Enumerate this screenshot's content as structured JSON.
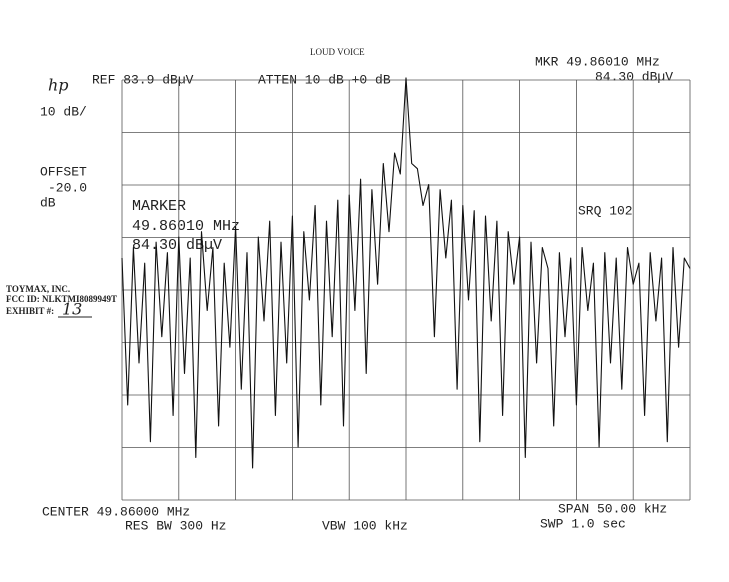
{
  "chart_data": {
    "type": "line",
    "title": "LOUD VOICE",
    "logo": "hp",
    "ref_level": "REF 83.9 dBµV",
    "attenuation": "ATTEN 10 dB +0 dB",
    "marker_freq": "MKR 49.86010 MHz",
    "marker_level": "84.30 dBµV",
    "scale": "10 dB/",
    "offset_label": "OFFSET",
    "offset_value": "-20.0",
    "offset_unit": "dB",
    "marker_title": "MARKER",
    "marker_box_freq": "49.86010 MHz",
    "marker_box_level": "84.30 dBµV",
    "srq": "SRQ 102",
    "center": "CENTER 49.86000 MHz",
    "res_bw": "RES BW 300 Hz",
    "vbw": "VBW 100 kHz",
    "span": "SPAN 50.00 kHz",
    "sweep": "SWP 1.0 sec",
    "xlim": [
      49.835,
      49.885
    ],
    "ylim": [
      3.9,
      83.9
    ],
    "xticks": [
      49.835,
      49.84,
      49.845,
      49.85,
      49.855,
      49.86,
      49.865,
      49.87,
      49.875,
      49.88,
      49.885
    ],
    "yticks": [
      3.9,
      13.9,
      23.9,
      33.9,
      43.9,
      53.9,
      63.9,
      73.9,
      83.9
    ],
    "grid": true,
    "x": [
      49.835,
      49.8355,
      49.836,
      49.8365,
      49.837,
      49.8375,
      49.838,
      49.8385,
      49.839,
      49.8395,
      49.84,
      49.8405,
      49.841,
      49.8415,
      49.842,
      49.8425,
      49.843,
      49.8435,
      49.844,
      49.8445,
      49.845,
      49.8455,
      49.846,
      49.8465,
      49.847,
      49.8475,
      49.848,
      49.8485,
      49.849,
      49.8495,
      49.85,
      49.8505,
      49.851,
      49.8515,
      49.852,
      49.8525,
      49.853,
      49.8535,
      49.854,
      49.8545,
      49.855,
      49.8555,
      49.856,
      49.8565,
      49.857,
      49.8575,
      49.858,
      49.8585,
      49.859,
      49.8595,
      49.86,
      49.8605,
      49.861,
      49.8615,
      49.862,
      49.8625,
      49.863,
      49.8635,
      49.864,
      49.8645,
      49.865,
      49.8655,
      49.866,
      49.8665,
      49.867,
      49.8675,
      49.868,
      49.8685,
      49.869,
      49.8695,
      49.87,
      49.8705,
      49.871,
      49.8715,
      49.872,
      49.8725,
      49.873,
      49.8735,
      49.874,
      49.8745,
      49.875,
      49.8755,
      49.876,
      49.8765,
      49.877,
      49.8775,
      49.878,
      49.8785,
      49.879,
      49.8795,
      49.88,
      49.8805,
      49.881,
      49.8815,
      49.882,
      49.8825,
      49.883,
      49.8835,
      49.884,
      49.8845,
      49.885
    ],
    "series": [
      {
        "color": "#111111",
        "values": [
          50,
          22,
          52,
          30,
          49,
          15,
          53,
          35,
          51,
          20,
          54,
          28,
          50,
          12,
          55,
          40,
          52,
          18,
          49,
          33,
          56,
          25,
          51,
          10,
          54,
          38,
          57,
          20,
          53,
          30,
          58,
          14,
          55,
          42,
          60,
          22,
          57,
          35,
          61,
          18,
          62,
          40,
          65,
          28,
          63,
          45,
          68,
          55,
          70,
          66,
          84.3,
          68,
          67,
          60,
          64,
          35,
          63,
          50,
          61,
          25,
          60,
          42,
          59,
          15,
          58,
          38,
          57,
          20,
          55,
          45,
          54,
          12,
          53,
          30,
          52,
          48,
          18,
          51,
          35,
          50,
          22,
          52,
          40,
          49,
          14,
          51,
          30,
          50,
          25,
          52,
          45,
          49,
          20,
          51,
          38,
          50,
          15,
          52,
          33,
          50,
          48
        ]
      }
    ]
  },
  "stamp": {
    "company": "TOYMAX, INC.",
    "fcc_id": "FCC ID: NLKTMI8089949T",
    "exhibit_label": "EXHIBIT #:",
    "exhibit_number": "13"
  }
}
